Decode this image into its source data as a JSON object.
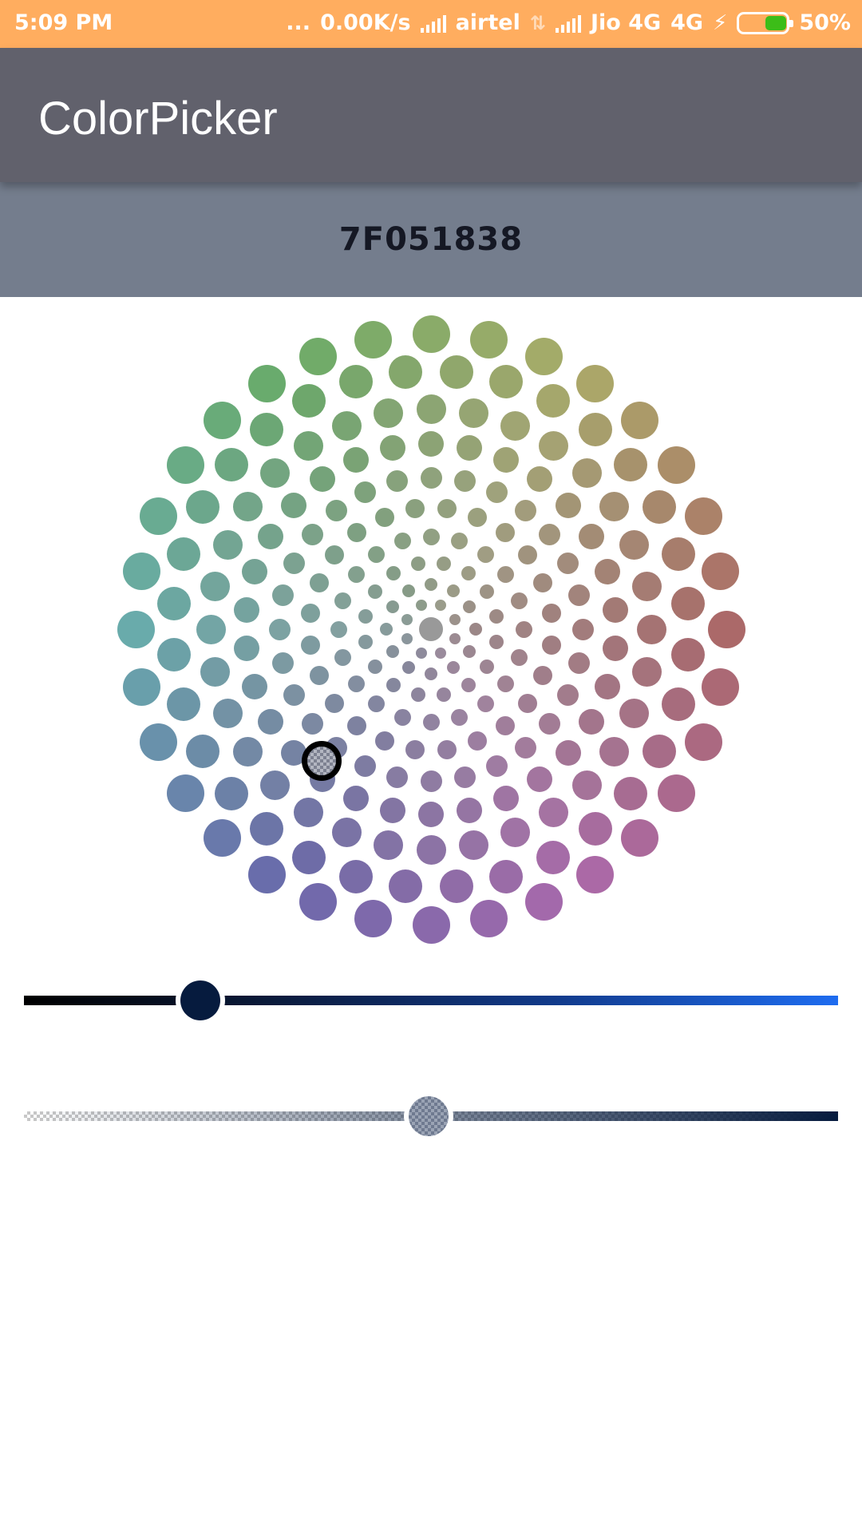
{
  "status_bar": {
    "time": "5:09 PM",
    "dots": "...",
    "net_speed": "0.00K/s",
    "carrier1": "airtel",
    "carrier2": "Jio 4G",
    "network_type": "4G",
    "battery": "50%",
    "battery_level": 0.5,
    "icons": [
      "signal-icon",
      "data-arrows-icon",
      "charging-bolt-icon",
      "battery-icon"
    ]
  },
  "app_bar": {
    "title": "ColorPicker"
  },
  "color": {
    "hex": "7F051838"
  },
  "wheel": {
    "icon": "color-wheel",
    "selected_color": "#7d8191"
  },
  "sliders": {
    "lightness": {
      "value": 0.22,
      "thumb_color": "#061b3e",
      "end_color": "#1e6cf0"
    },
    "alpha": {
      "value": 0.5,
      "thumb_color": "#6f7a90"
    }
  },
  "colors": {
    "status_bar": "#ffad5f",
    "app_bar": "#61616c",
    "hex_bar": "#747d8d"
  }
}
